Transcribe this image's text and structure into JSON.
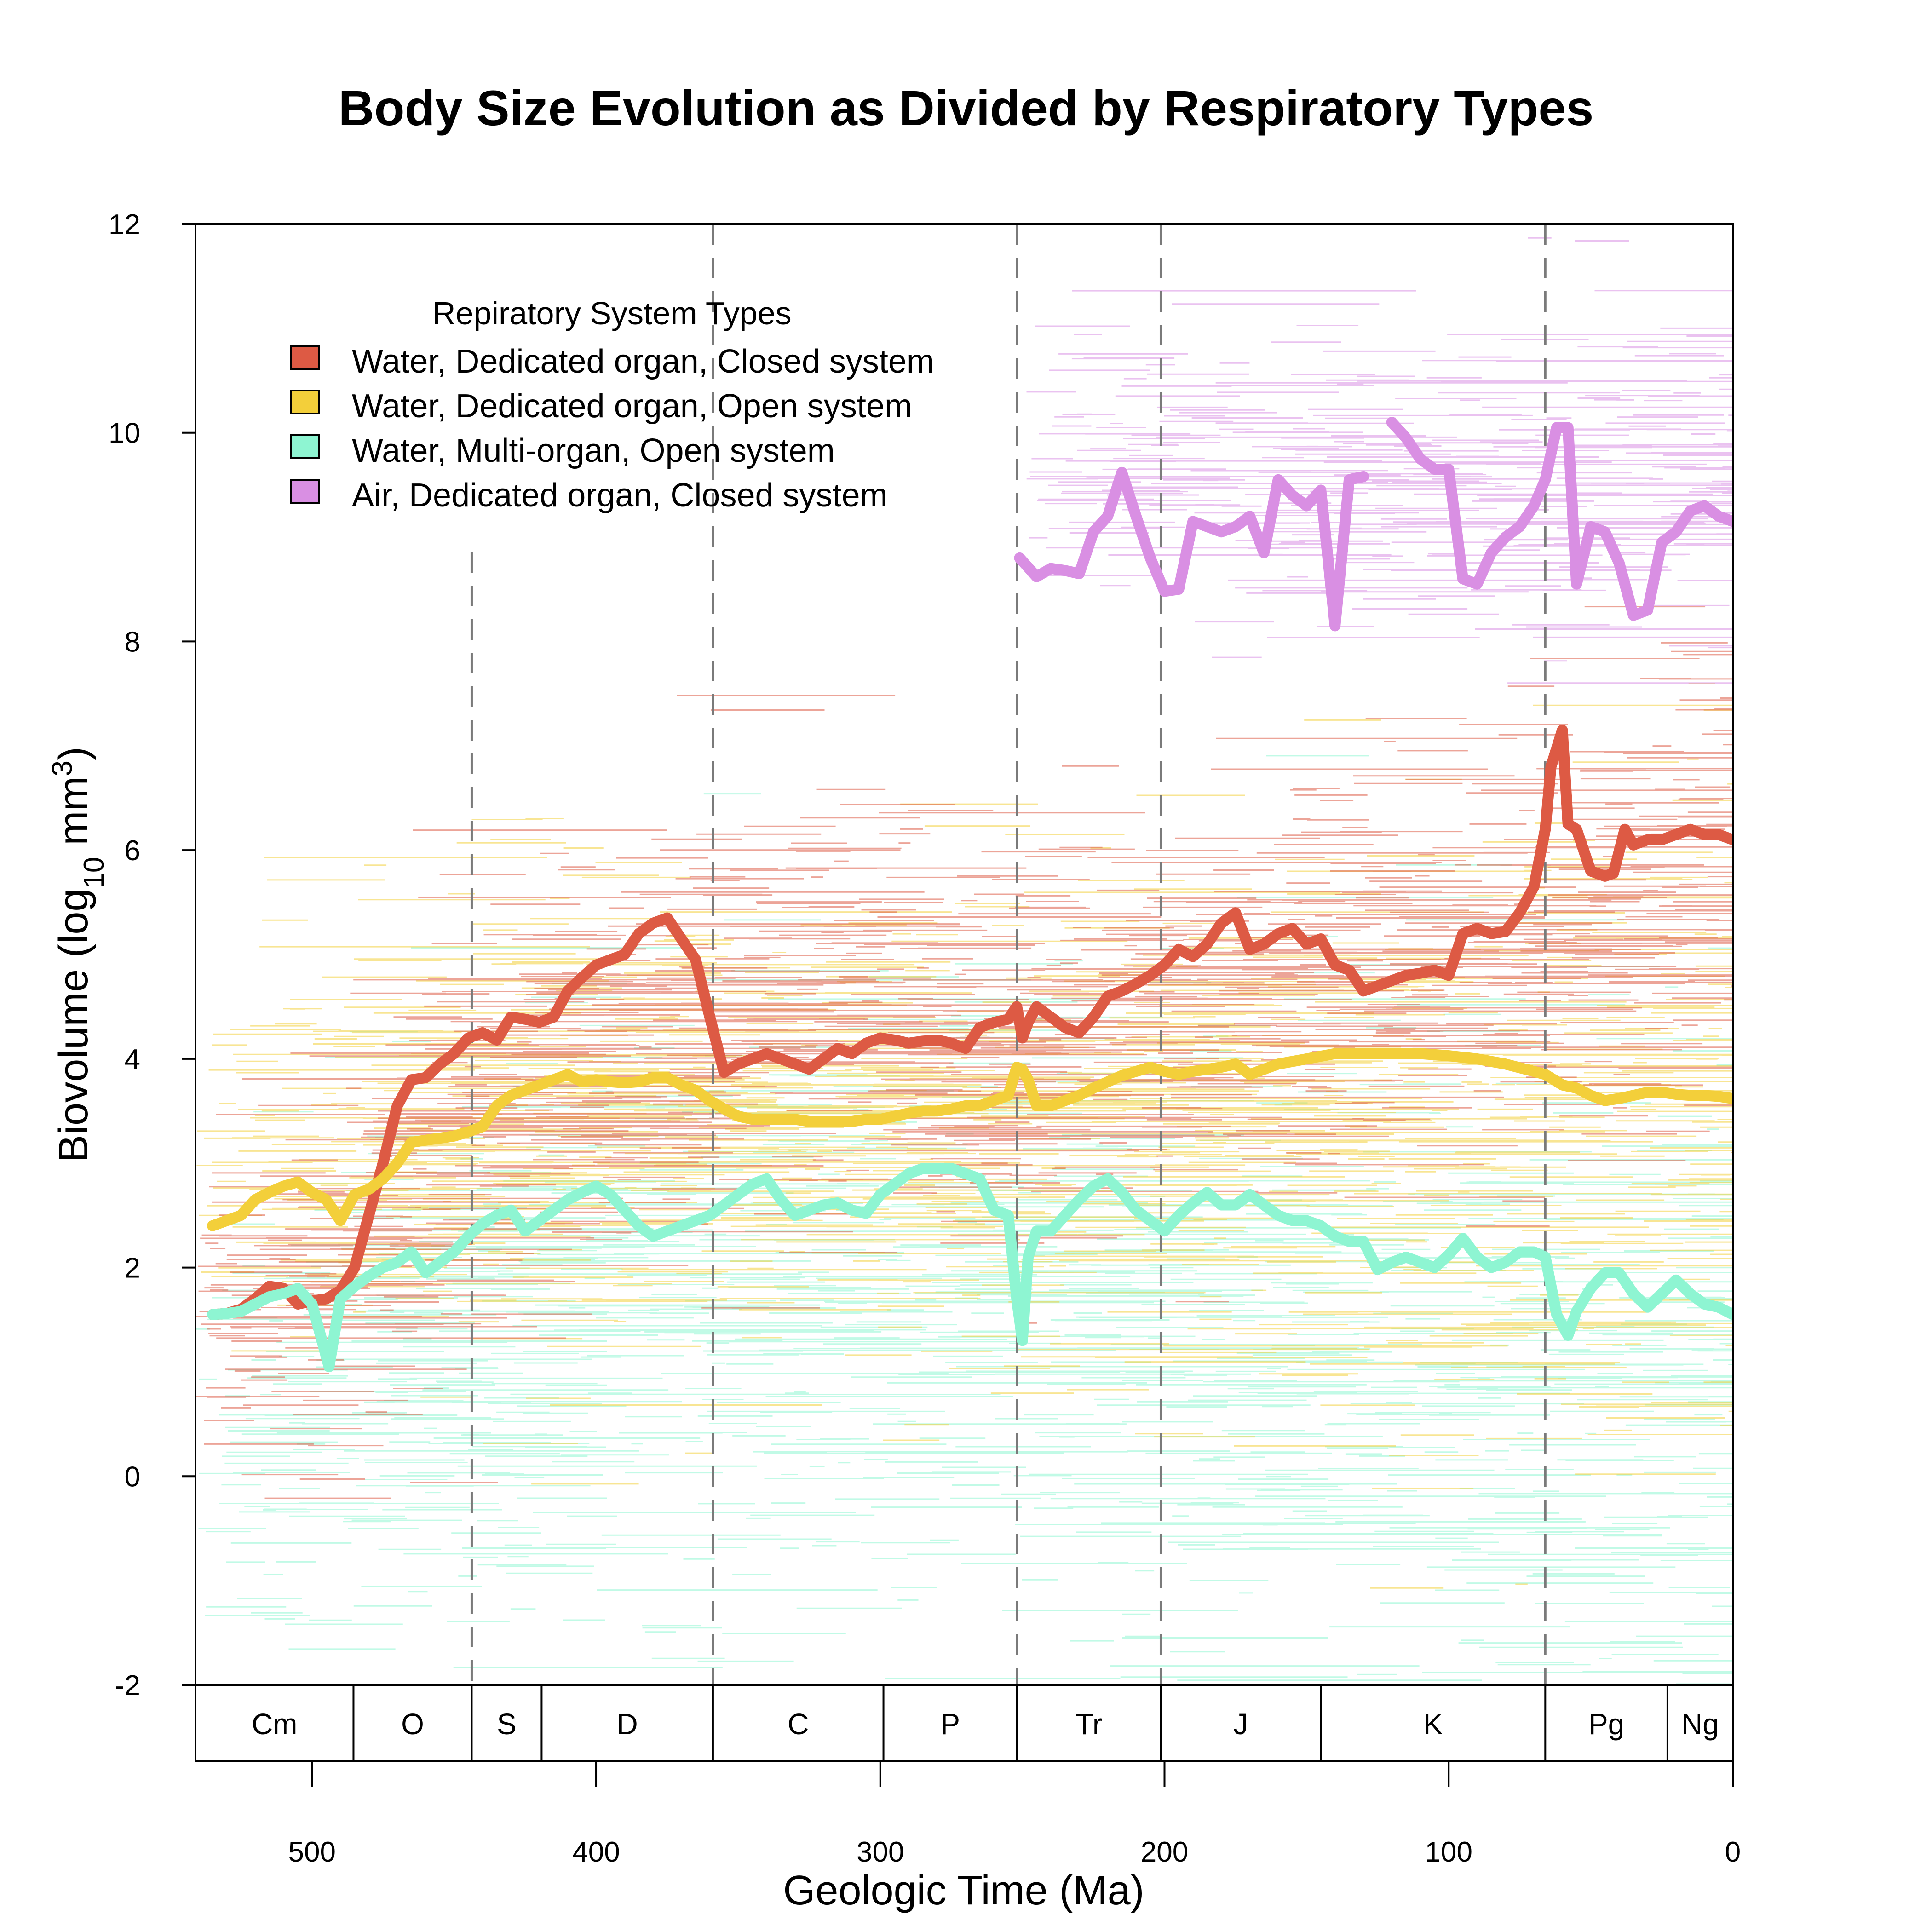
{
  "chart_data": {
    "type": "line",
    "title": "Body Size Evolution as Divided by Respiratory Types",
    "xlabel": "Geologic Time (Ma)",
    "ylabel_main": "Biovolume (log",
    "ylabel_sub": "10",
    "ylabel_unit": " mm",
    "ylabel_sup": "3",
    "ylabel_close": ")",
    "xlim": [
      541,
      0
    ],
    "ylim": [
      -2,
      12
    ],
    "x_reversed": true,
    "x_ticks": [
      500,
      400,
      300,
      200,
      100,
      0
    ],
    "y_ticks": [
      -2,
      0,
      2,
      4,
      6,
      8,
      10,
      12
    ],
    "grid": false,
    "period_boundaries": [
      443.8,
      358.9,
      251.9,
      201.3,
      66
    ],
    "periods": [
      {
        "label": "Cm",
        "start": 541,
        "end": 485.4
      },
      {
        "label": "O",
        "start": 485.4,
        "end": 443.8
      },
      {
        "label": "S",
        "start": 443.8,
        "end": 419.2
      },
      {
        "label": "D",
        "start": 419.2,
        "end": 358.9
      },
      {
        "label": "C",
        "start": 358.9,
        "end": 298.9
      },
      {
        "label": "P",
        "start": 298.9,
        "end": 251.9
      },
      {
        "label": "Tr",
        "start": 251.9,
        "end": 201.3
      },
      {
        "label": "J",
        "start": 201.3,
        "end": 145
      },
      {
        "label": "K",
        "start": 145,
        "end": 66
      },
      {
        "label": "Pg",
        "start": 66,
        "end": 23
      },
      {
        "label": "Ng",
        "start": 23,
        "end": 0
      }
    ],
    "legend": {
      "title": "Repiratory System Types",
      "placement": "top-left"
    },
    "series": [
      {
        "name": "Water, Dedicated organ, Closed system",
        "color": "#dd5a44",
        "line_ma": [
          535,
          530,
          525,
          520,
          515,
          510,
          505,
          500,
          495,
          490,
          485,
          480,
          475,
          470,
          465,
          460,
          455,
          450,
          445,
          440,
          435,
          430,
          425,
          420,
          415,
          410,
          405,
          400,
          395,
          390,
          385,
          380,
          375,
          370,
          365,
          360,
          355,
          350,
          345,
          340,
          335,
          330,
          325,
          320,
          315,
          310,
          305,
          300,
          295,
          290,
          285,
          280,
          275,
          270,
          265,
          260,
          255,
          252,
          250,
          248,
          245,
          240,
          235,
          230,
          225,
          220,
          215,
          210,
          205,
          200,
          195,
          190,
          185,
          180,
          175,
          170,
          165,
          160,
          155,
          150,
          145,
          140,
          135,
          130,
          125,
          120,
          115,
          110,
          105,
          100,
          95,
          90,
          85,
          80,
          75,
          70,
          66,
          64,
          60,
          58,
          55,
          50,
          45,
          42,
          38,
          35,
          30,
          25,
          20,
          15,
          10,
          5,
          0
        ],
        "line_val": [
          1.55,
          1.56,
          1.6,
          1.7,
          1.82,
          1.8,
          1.65,
          1.68,
          1.7,
          1.78,
          2.0,
          2.5,
          3.0,
          3.55,
          3.8,
          3.82,
          3.95,
          4.05,
          4.2,
          4.25,
          4.18,
          4.4,
          4.38,
          4.35,
          4.4,
          4.65,
          4.78,
          4.9,
          4.95,
          5.0,
          5.2,
          5.3,
          5.35,
          5.15,
          4.95,
          4.4,
          3.87,
          3.95,
          4.0,
          4.05,
          4.0,
          3.95,
          3.9,
          4.0,
          4.1,
          4.05,
          4.15,
          4.2,
          4.18,
          4.15,
          4.17,
          4.18,
          4.15,
          4.1,
          4.3,
          4.35,
          4.38,
          4.5,
          4.2,
          4.35,
          4.5,
          4.4,
          4.3,
          4.25,
          4.4,
          4.6,
          4.65,
          4.72,
          4.8,
          4.9,
          5.05,
          4.98,
          5.1,
          5.3,
          5.4,
          5.05,
          5.1,
          5.2,
          5.25,
          5.1,
          5.15,
          4.9,
          4.85,
          4.65,
          4.7,
          4.75,
          4.8,
          4.82,
          4.85,
          4.8,
          5.2,
          5.25,
          5.2,
          5.22,
          5.4,
          5.65,
          6.2,
          6.8,
          7.15,
          6.25,
          6.2,
          5.8,
          5.75,
          5.78,
          6.2,
          6.05,
          6.1,
          6.1,
          6.15,
          6.2,
          6.15,
          6.15,
          6.1
        ],
        "band_center": [
          1.5,
          1.8,
          3.8,
          4.3,
          4.8,
          4.3,
          4.2,
          4.6,
          5.0,
          5.1,
          6.2
        ],
        "band_spread": [
          1.4,
          1.6,
          1.8,
          1.9,
          1.9,
          1.7,
          1.7,
          1.8,
          1.9,
          2.0,
          2.2
        ]
      },
      {
        "name": "Water, Dedicated organ, Open system",
        "color": "#f3cf3a",
        "line_ma": [
          535,
          525,
          520,
          515,
          510,
          505,
          500,
          495,
          490,
          485,
          480,
          475,
          470,
          465,
          460,
          455,
          450,
          445,
          440,
          435,
          430,
          425,
          420,
          415,
          410,
          405,
          400,
          395,
          390,
          385,
          380,
          375,
          370,
          365,
          360,
          355,
          350,
          345,
          340,
          335,
          330,
          325,
          320,
          315,
          310,
          305,
          300,
          295,
          290,
          285,
          280,
          275,
          270,
          265,
          260,
          255,
          252,
          250,
          248,
          245,
          240,
          235,
          230,
          225,
          220,
          215,
          210,
          205,
          200,
          195,
          190,
          185,
          180,
          175,
          170,
          165,
          160,
          150,
          140,
          130,
          120,
          110,
          100,
          90,
          80,
          70,
          66,
          60,
          55,
          50,
          45,
          40,
          35,
          30,
          25,
          20,
          15,
          10,
          5,
          0
        ],
        "line_val": [
          2.4,
          2.5,
          2.65,
          2.72,
          2.78,
          2.82,
          2.72,
          2.65,
          2.45,
          2.7,
          2.75,
          2.85,
          3.0,
          3.2,
          3.22,
          3.24,
          3.26,
          3.3,
          3.35,
          3.55,
          3.65,
          3.7,
          3.75,
          3.8,
          3.85,
          3.78,
          3.8,
          3.78,
          3.77,
          3.78,
          3.82,
          3.82,
          3.75,
          3.7,
          3.6,
          3.52,
          3.45,
          3.42,
          3.42,
          3.42,
          3.42,
          3.4,
          3.4,
          3.4,
          3.4,
          3.42,
          3.42,
          3.45,
          3.48,
          3.5,
          3.5,
          3.52,
          3.55,
          3.55,
          3.6,
          3.65,
          3.92,
          3.9,
          3.8,
          3.55,
          3.55,
          3.6,
          3.65,
          3.72,
          3.78,
          3.84,
          3.88,
          3.92,
          3.88,
          3.85,
          3.88,
          3.9,
          3.92,
          3.95,
          3.85,
          3.9,
          3.95,
          4.0,
          4.05,
          4.05,
          4.05,
          4.05,
          4.03,
          4.0,
          3.95,
          3.88,
          3.85,
          3.75,
          3.72,
          3.65,
          3.6,
          3.62,
          3.65,
          3.68,
          3.68,
          3.66,
          3.65,
          3.65,
          3.64,
          3.62
        ],
        "band_center": [
          3.4,
          3.0,
          3.3,
          3.5,
          3.3,
          3.2,
          3.4,
          3.5,
          3.3,
          3.3,
          3.5
        ],
        "band_spread": [
          1.8,
          2.0,
          2.0,
          2.0,
          2.0,
          2.0,
          2.2,
          2.3,
          2.5,
          2.8,
          3.0
        ]
      },
      {
        "name": "Water, Multi-organ, Open system",
        "color": "#8ef5d2",
        "line_ma": [
          535,
          530,
          525,
          520,
          515,
          510,
          505,
          500,
          497,
          494,
          490,
          485,
          480,
          475,
          470,
          465,
          460,
          455,
          450,
          445,
          440,
          435,
          430,
          425,
          420,
          415,
          410,
          405,
          400,
          395,
          390,
          385,
          380,
          375,
          370,
          365,
          360,
          355,
          350,
          345,
          340,
          335,
          330,
          325,
          320,
          315,
          310,
          305,
          300,
          295,
          290,
          285,
          280,
          275,
          270,
          265,
          260,
          255,
          252,
          250,
          248,
          245,
          240,
          235,
          230,
          225,
          220,
          215,
          210,
          205,
          200,
          195,
          190,
          185,
          180,
          175,
          170,
          165,
          160,
          155,
          150,
          145,
          140,
          135,
          130,
          125,
          120,
          115,
          110,
          105,
          100,
          95,
          90,
          85,
          80,
          75,
          70,
          66,
          62,
          58,
          55,
          50,
          45,
          40,
          35,
          30,
          25,
          20,
          15,
          10,
          5,
          0
        ],
        "line_val": [
          1.55,
          1.56,
          1.58,
          1.65,
          1.72,
          1.75,
          1.8,
          1.65,
          1.35,
          1.05,
          1.7,
          1.82,
          1.92,
          2.0,
          2.05,
          2.15,
          1.95,
          2.05,
          2.15,
          2.3,
          2.42,
          2.5,
          2.55,
          2.35,
          2.45,
          2.55,
          2.65,
          2.72,
          2.78,
          2.7,
          2.55,
          2.4,
          2.3,
          2.35,
          2.4,
          2.45,
          2.5,
          2.6,
          2.7,
          2.8,
          2.85,
          2.65,
          2.5,
          2.55,
          2.6,
          2.62,
          2.55,
          2.52,
          2.7,
          2.8,
          2.9,
          2.95,
          2.95,
          2.95,
          2.9,
          2.85,
          2.55,
          2.5,
          1.7,
          1.3,
          2.1,
          2.35,
          2.35,
          2.5,
          2.65,
          2.78,
          2.85,
          2.72,
          2.55,
          2.45,
          2.35,
          2.5,
          2.62,
          2.72,
          2.6,
          2.6,
          2.7,
          2.6,
          2.5,
          2.45,
          2.45,
          2.4,
          2.3,
          2.25,
          2.25,
          1.98,
          2.05,
          2.1,
          2.05,
          2.0,
          2.12,
          2.28,
          2.1,
          2.0,
          2.05,
          2.15,
          2.15,
          2.1,
          1.55,
          1.35,
          1.58,
          1.8,
          1.95,
          1.95,
          1.75,
          1.62,
          1.75,
          1.88,
          1.75,
          1.65,
          1.62,
          1.55
        ],
        "band_center": [
          0.3,
          0.8,
          1.3,
          1.6,
          1.8,
          1.6,
          1.5,
          1.4,
          1.2,
          0.9,
          0.8
        ],
        "band_spread": [
          2.0,
          2.4,
          2.6,
          2.7,
          2.7,
          2.7,
          2.8,
          2.9,
          3.1,
          3.3,
          3.4
        ]
      },
      {
        "name": "Air, Dedicated organ, Closed system",
        "color": "#d98fe3",
        "segments": [
          {
            "line_ma": [
              251,
              245,
              240,
              235,
              230,
              225,
              220,
              215,
              210,
              205,
              200,
              195,
              190,
              185,
              180,
              175,
              170,
              165,
              160,
              155,
              150,
              145,
              140,
              135,
              130
            ],
            "line_val": [
              8.8,
              8.62,
              8.7,
              8.68,
              8.65,
              9.05,
              9.2,
              9.62,
              9.2,
              8.8,
              8.48,
              8.5,
              9.15,
              9.1,
              9.05,
              9.1,
              9.2,
              8.85,
              9.55,
              9.4,
              9.3,
              9.45,
              8.15,
              9.55,
              9.58
            ]
          },
          {
            "line_ma": [
              120,
              115,
              110,
              105,
              100,
              95,
              90,
              85,
              80,
              75,
              70,
              66,
              62,
              58,
              55,
              50,
              45,
              40,
              35,
              30,
              25,
              20,
              15,
              10,
              5,
              0
            ],
            "line_val": [
              10.1,
              9.95,
              9.75,
              9.65,
              9.65,
              8.6,
              8.55,
              8.85,
              9.0,
              9.1,
              9.3,
              9.55,
              10.05,
              10.05,
              8.55,
              9.1,
              9.05,
              8.75,
              8.25,
              8.3,
              8.95,
              9.05,
              9.25,
              9.3,
              9.2,
              9.15
            ]
          }
        ],
        "band_center": [
          10.2,
          9.2,
          9.5
        ],
        "band_spread": [
          1.1,
          1.3,
          1.4
        ],
        "band_range_ma": [
          251,
          0
        ]
      }
    ]
  }
}
